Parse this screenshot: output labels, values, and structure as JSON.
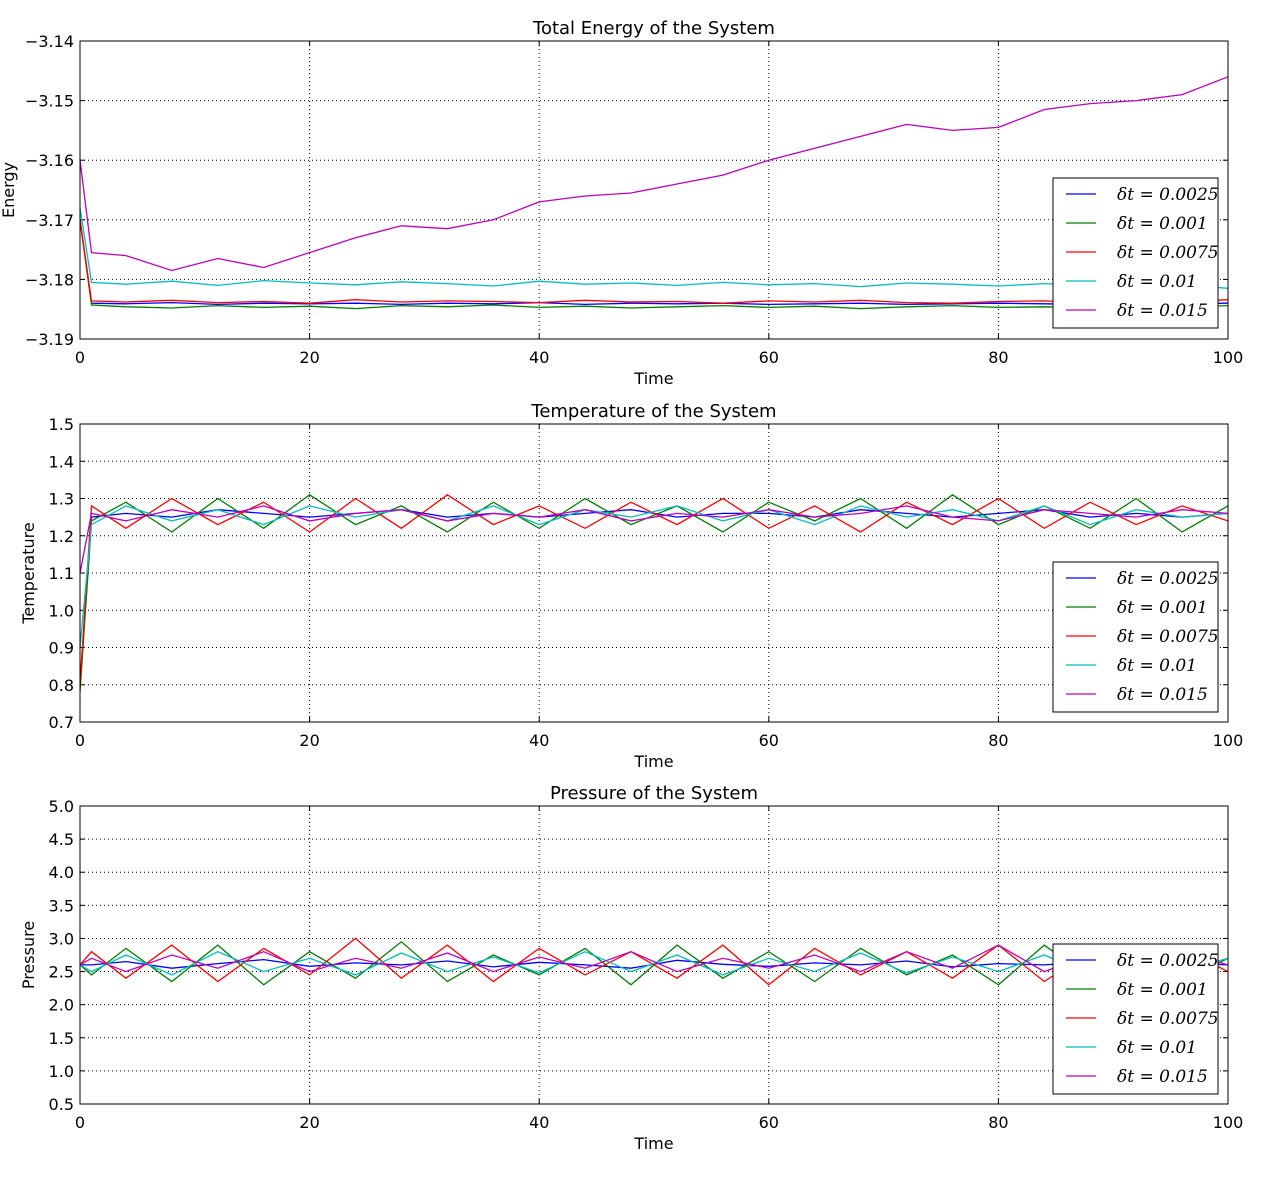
{
  "chart_data": [
    {
      "type": "line",
      "title": "Total Energy of the System",
      "xlabel": "Time",
      "ylabel": "Energy",
      "xlim": [
        0,
        100
      ],
      "ylim": [
        -3.19,
        -3.14
      ],
      "xticks": [
        "0",
        "20",
        "40",
        "60",
        "80",
        "100"
      ],
      "yticks": [
        "−3.19",
        "−3.18",
        "−3.17",
        "−3.16",
        "−3.15",
        "−3.14"
      ],
      "grid": true,
      "legend_position": "right",
      "x": [
        0,
        1,
        4,
        8,
        12,
        16,
        20,
        24,
        28,
        32,
        36,
        40,
        44,
        48,
        52,
        56,
        60,
        64,
        68,
        72,
        76,
        80,
        84,
        88,
        92,
        96,
        100
      ],
      "series": [
        {
          "name": "δt = 0.0025",
          "color": "#0000ff",
          "values": [
            -3.17,
            -3.184,
            -3.1841,
            -3.1839,
            -3.1842,
            -3.184,
            -3.1841,
            -3.184,
            -3.1842,
            -3.184,
            -3.1841,
            -3.1839,
            -3.1842,
            -3.184,
            -3.1841,
            -3.184,
            -3.1842,
            -3.1841,
            -3.184,
            -3.1842,
            -3.1841,
            -3.184,
            -3.1841,
            -3.1842,
            -3.184,
            -3.1841,
            -3.184
          ]
        },
        {
          "name": "δt = 0.001",
          "color": "#008000",
          "values": [
            -3.17,
            -3.1843,
            -3.1846,
            -3.1848,
            -3.1844,
            -3.1847,
            -3.1845,
            -3.1849,
            -3.1844,
            -3.1846,
            -3.1843,
            -3.1847,
            -3.1845,
            -3.1848,
            -3.1846,
            -3.1844,
            -3.1847,
            -3.1845,
            -3.1849,
            -3.1846,
            -3.1844,
            -3.1847,
            -3.1846,
            -3.1848,
            -3.1845,
            -3.1847,
            -3.1844
          ]
        },
        {
          "name": "δt = 0.0075",
          "color": "#ff0000",
          "values": [
            -3.17,
            -3.1836,
            -3.1838,
            -3.1835,
            -3.1839,
            -3.1837,
            -3.184,
            -3.1834,
            -3.1838,
            -3.1836,
            -3.1837,
            -3.1839,
            -3.1835,
            -3.1838,
            -3.1837,
            -3.184,
            -3.1836,
            -3.1838,
            -3.1835,
            -3.1839,
            -3.184,
            -3.1837,
            -3.1836,
            -3.1839,
            -3.1837,
            -3.1838,
            -3.1834
          ]
        },
        {
          "name": "δt = 0.01",
          "color": "#00bfbf",
          "values": [
            -3.168,
            -3.1805,
            -3.1808,
            -3.1803,
            -3.181,
            -3.1802,
            -3.1806,
            -3.1809,
            -3.1804,
            -3.1807,
            -3.1811,
            -3.1803,
            -3.1808,
            -3.1806,
            -3.181,
            -3.1805,
            -3.1809,
            -3.1807,
            -3.1812,
            -3.1806,
            -3.1808,
            -3.1811,
            -3.1807,
            -3.181,
            -3.1813,
            -3.1809,
            -3.1815
          ]
        },
        {
          "name": "δt = 0.015",
          "color": "#bf00bf",
          "values": [
            -3.16,
            -3.1755,
            -3.176,
            -3.1785,
            -3.1765,
            -3.178,
            -3.1755,
            -3.173,
            -3.171,
            -3.1715,
            -3.17,
            -3.167,
            -3.166,
            -3.1655,
            -3.164,
            -3.1625,
            -3.16,
            -3.158,
            -3.156,
            -3.154,
            -3.155,
            -3.1545,
            -3.1515,
            -3.1505,
            -3.15,
            -3.149,
            -3.146
          ]
        }
      ]
    },
    {
      "type": "line",
      "title": "Temperature of the System",
      "xlabel": "Time",
      "ylabel": "Temperature",
      "xlim": [
        0,
        100
      ],
      "ylim": [
        0.7,
        1.5
      ],
      "xticks": [
        "0",
        "20",
        "40",
        "60",
        "80",
        "100"
      ],
      "yticks": [
        "0.7",
        "0.8",
        "0.9",
        "1.0",
        "1.1",
        "1.2",
        "1.3",
        "1.4",
        "1.5"
      ],
      "grid": true,
      "legend_position": "lower right",
      "x": [
        0,
        1,
        4,
        8,
        12,
        16,
        20,
        24,
        28,
        32,
        36,
        40,
        44,
        48,
        52,
        56,
        60,
        64,
        68,
        72,
        76,
        80,
        84,
        88,
        92,
        96,
        100
      ],
      "series": [
        {
          "name": "δt = 0.0025",
          "color": "#0000ff",
          "values": [
            0.8,
            1.25,
            1.26,
            1.25,
            1.27,
            1.26,
            1.25,
            1.26,
            1.27,
            1.25,
            1.26,
            1.25,
            1.26,
            1.27,
            1.25,
            1.26,
            1.26,
            1.25,
            1.27,
            1.26,
            1.25,
            1.26,
            1.27,
            1.25,
            1.26,
            1.25,
            1.26
          ]
        },
        {
          "name": "δt = 0.001",
          "color": "#008000",
          "values": [
            0.78,
            1.24,
            1.29,
            1.21,
            1.3,
            1.22,
            1.31,
            1.23,
            1.28,
            1.21,
            1.29,
            1.22,
            1.3,
            1.23,
            1.28,
            1.21,
            1.29,
            1.24,
            1.3,
            1.22,
            1.31,
            1.23,
            1.28,
            1.22,
            1.3,
            1.21,
            1.28
          ]
        },
        {
          "name": "δt = 0.0075",
          "color": "#ff0000",
          "values": [
            0.8,
            1.28,
            1.22,
            1.3,
            1.23,
            1.29,
            1.21,
            1.3,
            1.22,
            1.31,
            1.23,
            1.28,
            1.22,
            1.29,
            1.23,
            1.3,
            1.22,
            1.28,
            1.21,
            1.29,
            1.23,
            1.3,
            1.22,
            1.29,
            1.23,
            1.28,
            1.24
          ]
        },
        {
          "name": "δt = 0.01",
          "color": "#00bfbf",
          "values": [
            0.9,
            1.23,
            1.28,
            1.24,
            1.27,
            1.23,
            1.28,
            1.25,
            1.27,
            1.24,
            1.28,
            1.23,
            1.27,
            1.25,
            1.28,
            1.24,
            1.27,
            1.23,
            1.28,
            1.25,
            1.27,
            1.24,
            1.28,
            1.23,
            1.27,
            1.25,
            1.26
          ]
        },
        {
          "name": "δt = 0.015",
          "color": "#bf00bf",
          "values": [
            1.1,
            1.26,
            1.24,
            1.27,
            1.25,
            1.28,
            1.24,
            1.26,
            1.27,
            1.24,
            1.26,
            1.25,
            1.27,
            1.24,
            1.26,
            1.25,
            1.27,
            1.25,
            1.26,
            1.28,
            1.25,
            1.24,
            1.27,
            1.26,
            1.25,
            1.27,
            1.26
          ]
        }
      ]
    },
    {
      "type": "line",
      "title": "Pressure of the System",
      "xlabel": "Time",
      "ylabel": "Pressure",
      "xlim": [
        0,
        100
      ],
      "ylim": [
        0.5,
        5.0
      ],
      "xticks": [
        "0",
        "20",
        "40",
        "60",
        "80",
        "100"
      ],
      "yticks": [
        "0.5",
        "1.0",
        "1.5",
        "2.0",
        "2.5",
        "3.0",
        "3.5",
        "4.0",
        "4.5",
        "5.0"
      ],
      "grid": true,
      "legend_position": "lower right",
      "x": [
        0,
        1,
        4,
        8,
        12,
        16,
        20,
        24,
        28,
        32,
        36,
        40,
        44,
        48,
        52,
        56,
        60,
        64,
        68,
        72,
        76,
        80,
        84,
        88,
        92,
        96,
        100
      ],
      "series": [
        {
          "name": "δt = 0.0025",
          "color": "#0000ff",
          "values": [
            2.6,
            2.6,
            2.65,
            2.55,
            2.62,
            2.68,
            2.58,
            2.63,
            2.6,
            2.66,
            2.57,
            2.64,
            2.6,
            2.55,
            2.67,
            2.61,
            2.58,
            2.63,
            2.6,
            2.66,
            2.57,
            2.62,
            2.6,
            2.65,
            2.58,
            2.63,
            2.6
          ]
        },
        {
          "name": "δt = 0.001",
          "color": "#008000",
          "values": [
            2.6,
            2.45,
            2.85,
            2.35,
            2.9,
            2.3,
            2.8,
            2.4,
            2.95,
            2.35,
            2.75,
            2.45,
            2.85,
            2.3,
            2.9,
            2.4,
            2.8,
            2.35,
            2.85,
            2.45,
            2.75,
            2.3,
            2.9,
            2.4,
            2.85,
            2.35,
            2.7
          ]
        },
        {
          "name": "δt = 0.0075",
          "color": "#ff0000",
          "values": [
            2.6,
            2.8,
            2.4,
            2.9,
            2.35,
            2.85,
            2.45,
            3.0,
            2.4,
            2.9,
            2.35,
            2.85,
            2.45,
            2.8,
            2.4,
            2.9,
            2.3,
            2.85,
            2.45,
            2.8,
            2.4,
            2.9,
            2.35,
            2.8,
            2.45,
            2.85,
            2.5
          ]
        },
        {
          "name": "δt = 0.01",
          "color": "#00bfbf",
          "values": [
            2.6,
            2.5,
            2.75,
            2.45,
            2.8,
            2.5,
            2.7,
            2.45,
            2.78,
            2.5,
            2.72,
            2.48,
            2.8,
            2.5,
            2.75,
            2.45,
            2.7,
            2.5,
            2.78,
            2.48,
            2.72,
            2.5,
            2.75,
            2.45,
            2.8,
            2.5,
            2.7
          ]
        },
        {
          "name": "δt = 0.015",
          "color": "#bf00bf",
          "values": [
            2.6,
            2.7,
            2.5,
            2.75,
            2.55,
            2.8,
            2.5,
            2.7,
            2.55,
            2.78,
            2.5,
            2.72,
            2.55,
            2.8,
            2.5,
            2.7,
            2.55,
            2.75,
            2.5,
            2.8,
            2.55,
            2.9,
            2.5,
            2.75,
            2.55,
            2.8,
            2.6
          ]
        }
      ]
    }
  ]
}
